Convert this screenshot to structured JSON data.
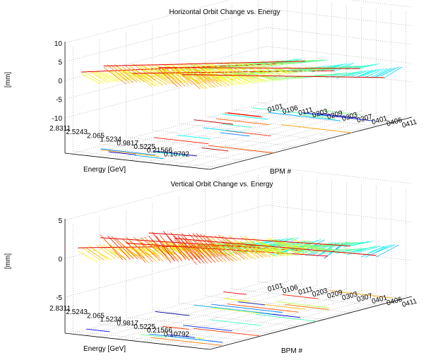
{
  "chart_data": [
    {
      "type": "surface-3d",
      "title": "Horizontal Orbit Change vs. Energy",
      "zlabel": "[mm]",
      "xlabel": "BPM #",
      "ylabel": "Energy [GeV]",
      "zlim": [
        -10,
        10
      ],
      "z_ticks": [
        "10",
        "5",
        "0",
        "-5",
        "-10"
      ],
      "energy_ticks": [
        "2.8311",
        "2.5243",
        "2.065",
        "1.5234",
        "0.9817",
        "0.5225",
        "0.21566",
        "0.10792"
      ],
      "bpm_ticks": [
        "0101",
        "0106",
        "0111",
        "0203",
        "0209",
        "0303",
        "0307",
        "0401",
        "0406",
        "0411"
      ],
      "colormap": [
        "#00008f",
        "#0000ff",
        "#0080ff",
        "#00ffff",
        "#80ff80",
        "#ffff00",
        "#ff8000",
        "#ff0000",
        "#800000"
      ],
      "grid": true,
      "contour_floor": true,
      "ridges": [
        {
          "bpm_start": 1.0,
          "bpm_end": 2.2,
          "value_high_energy": 3.5,
          "value_low_energy": -2.0
        },
        {
          "bpm_start": 2.4,
          "bpm_end": 3.8,
          "value_high_energy": 5.5,
          "value_low_energy": -1.0
        },
        {
          "bpm_start": 4.2,
          "bpm_end": 5.4,
          "value_high_energy": 4.0,
          "value_low_energy": -3.0
        },
        {
          "bpm_start": 5.8,
          "bpm_end": 7.0,
          "value_high_energy": 6.0,
          "value_low_energy": -2.0
        },
        {
          "bpm_start": 7.3,
          "bpm_end": 8.4,
          "value_high_energy": 4.5,
          "value_low_energy": -4.0
        }
      ]
    },
    {
      "type": "surface-3d",
      "title": "Vertical Orbit Change vs. Energy",
      "zlabel": "[mm]",
      "xlabel": "BPM #",
      "ylabel": "Energy [GeV]",
      "zlim": [
        -5,
        5
      ],
      "z_ticks": [
        "5",
        "0",
        "-5"
      ],
      "energy_ticks": [
        "2.8311",
        "2.5243",
        "2.065",
        "1.5234",
        "0.9817",
        "0.5225",
        "0.21566",
        "0.10792"
      ],
      "bpm_ticks": [
        "0101",
        "0106",
        "0111",
        "0203",
        "0209",
        "0303",
        "0307",
        "0401",
        "0406",
        "0411"
      ],
      "colormap": [
        "#00008f",
        "#0000ff",
        "#0080ff",
        "#00ffff",
        "#80ff80",
        "#ffff00",
        "#ff8000",
        "#ff0000",
        "#800000"
      ],
      "grid": true,
      "contour_floor": true,
      "ridges": [
        {
          "bpm_start": 0.8,
          "bpm_end": 2.0,
          "value_high_energy": 2.0,
          "value_low_energy": -1.5
        },
        {
          "bpm_start": 2.2,
          "bpm_end": 3.6,
          "value_high_energy": 3.5,
          "value_low_energy": -2.0
        },
        {
          "bpm_start": 3.8,
          "bpm_end": 5.0,
          "value_high_energy": 3.0,
          "value_low_energy": -2.5
        },
        {
          "bpm_start": 5.2,
          "bpm_end": 6.6,
          "value_high_energy": 4.5,
          "value_low_energy": -1.0
        },
        {
          "bpm_start": 6.8,
          "bpm_end": 8.2,
          "value_high_energy": 4.0,
          "value_low_energy": -2.0
        }
      ]
    }
  ]
}
